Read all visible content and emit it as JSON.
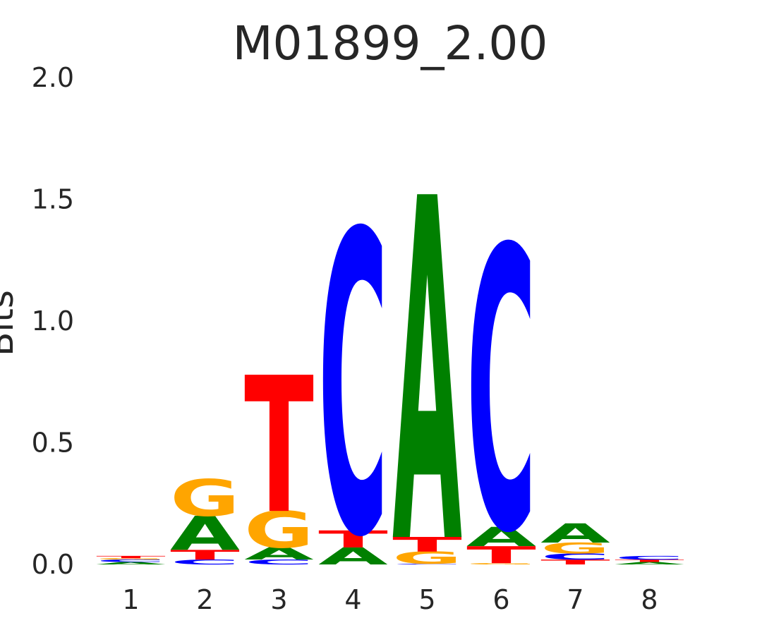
{
  "chart_data": {
    "type": "sequence-logo",
    "title": "M01899_2.00",
    "xlabel": "",
    "ylabel": "Bits",
    "ylim": [
      0,
      2.0
    ],
    "yticks": [
      "2.0",
      "1.5",
      "1.0",
      "0.5",
      "0.0"
    ],
    "ytick_values": [
      2.0,
      1.5,
      1.0,
      0.5,
      0.0
    ],
    "positions": [
      "1",
      "2",
      "3",
      "4",
      "5",
      "6",
      "7",
      "8"
    ],
    "colors": {
      "A": "#008000",
      "C": "#0000ff",
      "G": "#ffa500",
      "T": "#ff0000"
    },
    "stacks": [
      [
        {
          "letter": "A",
          "bits": 0.01
        },
        {
          "letter": "C",
          "bits": 0.01
        },
        {
          "letter": "G",
          "bits": 0.005
        },
        {
          "letter": "T",
          "bits": 0.01
        }
      ],
      [
        {
          "letter": "C",
          "bits": 0.02
        },
        {
          "letter": "T",
          "bits": 0.04
        },
        {
          "letter": "A",
          "bits": 0.14
        },
        {
          "letter": "G",
          "bits": 0.15
        }
      ],
      [
        {
          "letter": "C",
          "bits": 0.02
        },
        {
          "letter": "A",
          "bits": 0.05
        },
        {
          "letter": "G",
          "bits": 0.15
        },
        {
          "letter": "T",
          "bits": 0.56
        }
      ],
      [
        {
          "letter": "A",
          "bits": 0.07
        },
        {
          "letter": "T",
          "bits": 0.07
        },
        {
          "letter": "C",
          "bits": 1.24
        }
      ],
      [
        {
          "letter": "C",
          "bits": 0.003
        },
        {
          "letter": "G",
          "bits": 0.05
        },
        {
          "letter": "T",
          "bits": 0.06
        },
        {
          "letter": "A",
          "bits": 1.41
        }
      ],
      [
        {
          "letter": "G",
          "bits": 0.005
        },
        {
          "letter": "T",
          "bits": 0.07
        },
        {
          "letter": "A",
          "bits": 0.08
        },
        {
          "letter": "C",
          "bits": 1.16
        }
      ],
      [
        {
          "letter": "T",
          "bits": 0.02
        },
        {
          "letter": "C",
          "bits": 0.025
        },
        {
          "letter": "G",
          "bits": 0.045
        },
        {
          "letter": "A",
          "bits": 0.08
        }
      ],
      [
        {
          "letter": "A",
          "bits": 0.01
        },
        {
          "letter": "T",
          "bits": 0.01
        },
        {
          "letter": "C",
          "bits": 0.015
        }
      ]
    ]
  }
}
